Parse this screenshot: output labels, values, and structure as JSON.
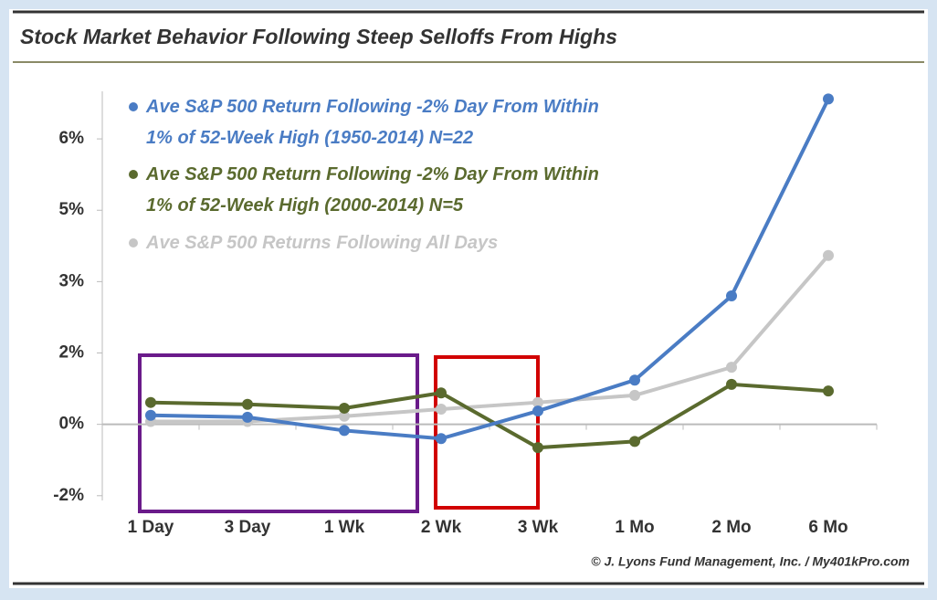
{
  "chart_data": {
    "type": "line",
    "title": "Stock Market Behavior Following Steep Selloffs From Highs",
    "categories": [
      "1 Day",
      "3 Day",
      "1 Wk",
      "2 Wk",
      "3 Wk",
      "1 Mo",
      "2 Mo",
      "6 Mo"
    ],
    "series": [
      {
        "name": "Ave S&P 500 Return Following -2% Day From Within 1% of 52-Week High (1950-2014) N=22",
        "color": "#4a7cc4",
        "values": [
          0.19,
          0.15,
          -0.13,
          -0.3,
          0.28,
          0.93,
          2.7,
          6.84
        ]
      },
      {
        "name": "Ave S&P 500 Return Following -2% Day From Within 1% of 52-Week High (2000-2014) N=5",
        "color": "#5a6a2e",
        "values": [
          0.46,
          0.42,
          0.34,
          0.66,
          -0.49,
          -0.36,
          0.84,
          0.7
        ]
      },
      {
        "name": "Ave S&P 500 Returns Following All Days",
        "color": "#c6c6c6",
        "values": [
          0.06,
          0.06,
          0.17,
          0.32,
          0.46,
          0.61,
          1.2,
          3.55
        ]
      }
    ],
    "ylim": [
      -1.6,
      7
    ],
    "yticks": [
      {
        "value": -1.5,
        "label": "-2%"
      },
      {
        "value": 0,
        "label": "0%"
      },
      {
        "value": 1.5,
        "label": "2%"
      },
      {
        "value": 3,
        "label": "3%"
      },
      {
        "value": 4.5,
        "label": "5%"
      },
      {
        "value": 6,
        "label": "6%"
      }
    ],
    "source": "© J. Lyons Fund Management, Inc. / My401kPro.com"
  }
}
